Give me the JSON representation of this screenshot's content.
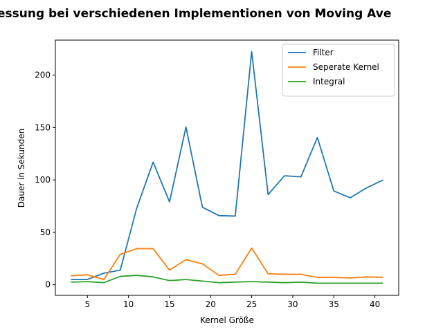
{
  "chart_data": {
    "type": "line",
    "title": "essung bei verschiedenen Implementionen von Moving Ave",
    "xlabel": "Kernel Größe",
    "ylabel": "Dauer in Sekunden",
    "xlim": [
      1.1,
      42.9
    ],
    "ylim": [
      -10.1,
      233.4
    ],
    "xticks": [
      5,
      10,
      15,
      20,
      25,
      30,
      35,
      40
    ],
    "yticks": [
      0,
      50,
      100,
      150,
      200
    ],
    "legend_position": "top-right",
    "grid": false,
    "x": [
      3,
      5,
      7,
      9,
      11,
      13,
      15,
      17,
      19,
      21,
      23,
      25,
      27,
      29,
      31,
      33,
      35,
      37,
      39,
      41
    ],
    "series": [
      {
        "name": "Filter",
        "color": "#1f77b4",
        "values": [
          5,
          5,
          11,
          14,
          73,
          117,
          79,
          150.5,
          74,
          66,
          65.5,
          222.5,
          86,
          104,
          103,
          140.5,
          89.5,
          83,
          92.5,
          100
        ]
      },
      {
        "name": "Seperate Kernel",
        "color": "#ff7f0e",
        "values": [
          8.5,
          9.5,
          5,
          29,
          34.5,
          34.5,
          14,
          24,
          20,
          9,
          10,
          35,
          10.5,
          10,
          10,
          7,
          7,
          6.5,
          7.5,
          7
        ]
      },
      {
        "name": "Integral",
        "color": "#2ca02c",
        "values": [
          2.5,
          3,
          2,
          8,
          9,
          7.5,
          4,
          5,
          3.5,
          2,
          2.5,
          3,
          2.5,
          2,
          2.5,
          1.5,
          1.5,
          1.5,
          1.5,
          1.5
        ]
      }
    ]
  }
}
